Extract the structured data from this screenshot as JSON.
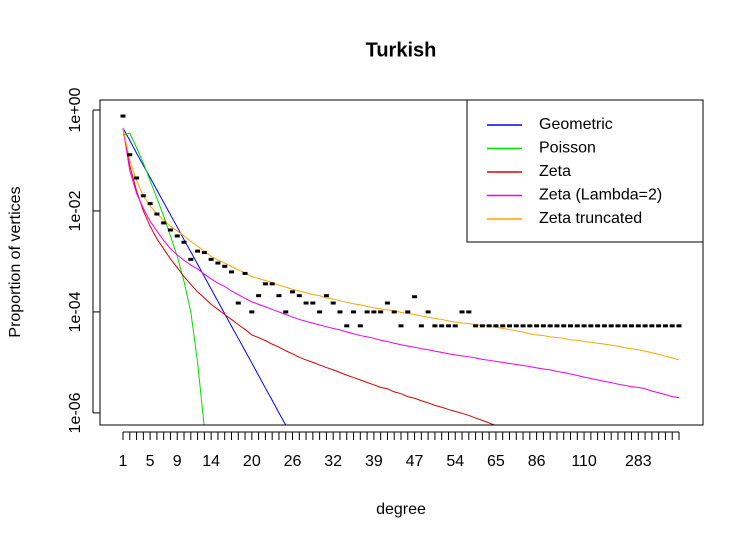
{
  "chart_data": {
    "type": "line",
    "title": "Turkish",
    "xlabel": "degree",
    "ylabel": "Proportion of vertices",
    "log_y": true,
    "ylim": [
      5.75e-07,
      1.58
    ],
    "yticks": [
      {
        "value": 1,
        "label": "1e+00"
      },
      {
        "value": 0.01,
        "label": "1e-02"
      },
      {
        "value": 0.0001,
        "label": "1e-04"
      },
      {
        "value": 1e-06,
        "label": "1e-06"
      }
    ],
    "legend": "topright",
    "categories": [
      "1",
      null,
      null,
      null,
      "5",
      null,
      null,
      null,
      "9",
      null,
      null,
      null,
      null,
      "14",
      null,
      null,
      null,
      null,
      null,
      "20",
      null,
      null,
      null,
      null,
      null,
      "26",
      null,
      null,
      null,
      null,
      null,
      "32",
      null,
      null,
      null,
      null,
      null,
      "39",
      null,
      null,
      null,
      null,
      null,
      "47",
      null,
      null,
      null,
      null,
      null,
      "54",
      null,
      null,
      null,
      null,
      null,
      "65",
      null,
      null,
      null,
      null,
      null,
      "86",
      null,
      null,
      null,
      null,
      null,
      null,
      "110",
      null,
      null,
      null,
      null,
      null,
      null,
      null,
      "283",
      null,
      null,
      null,
      null,
      null,
      null
    ],
    "color": "#000000",
    "values": [
      0.76,
      0.13,
      0.045,
      0.02,
      0.014,
      0.0087,
      0.0058,
      0.0042,
      0.0032,
      0.0024,
      0.0011,
      0.0016,
      0.0015,
      0.0011,
      0.00093,
      0.0008,
      0.00062,
      0.00015,
      0.00058,
      0.0001,
      0.00021,
      0.00036,
      0.00036,
      0.00021,
      0.0001,
      0.00025,
      0.00021,
      0.00015,
      0.00015,
      0.0001,
      0.00021,
      0.00015,
      0.0001,
      5.3e-05,
      0.0001,
      5.3e-05,
      0.0001,
      0.0001,
      0.0001,
      0.00015,
      0.0001,
      5.3e-05,
      0.0001,
      0.0002,
      5.3e-05,
      0.0001,
      5.3e-05,
      5.3e-05,
      5.3e-05,
      5.3e-05,
      0.0001,
      0.0001,
      5.3e-05,
      5.3e-05,
      5.3e-05,
      5.3e-05,
      5.3e-05,
      5.3e-05,
      5.3e-05,
      5.3e-05,
      5.3e-05,
      5.3e-05,
      5.3e-05,
      5.3e-05,
      5.3e-05,
      5.3e-05,
      5.3e-05,
      5.3e-05,
      5.3e-05,
      5.3e-05,
      5.3e-05,
      5.3e-05,
      5.3e-05,
      5.3e-05,
      5.3e-05,
      5.3e-05,
      5.3e-05,
      5.3e-05,
      5.3e-05,
      5.3e-05,
      5.3e-05,
      5.3e-05,
      5.3e-05
    ],
    "series": [
      {
        "name": "Geometric",
        "color": "#0000ff",
        "values": [
          0.44,
          0.25,
          0.14,
          0.08,
          0.046,
          0.026,
          0.0148,
          0.0084,
          0.0048,
          0.0027,
          0.00155,
          0.00088,
          0.0005,
          0.000285,
          0.000162,
          9.2e-05,
          5.2e-05,
          3e-05,
          1.7e-05,
          9.7e-06,
          5.5e-06,
          3.1e-06,
          1.78e-06,
          1e-06,
          5.75e-07,
          3.3e-07,
          null,
          null,
          null,
          null,
          null,
          null,
          null,
          null,
          null,
          null,
          null,
          null,
          null,
          null,
          null,
          null,
          null,
          null,
          null,
          null,
          null,
          null,
          null,
          null,
          null,
          null,
          null,
          null,
          null,
          null,
          null,
          null,
          null,
          null,
          null,
          null,
          null,
          null,
          null,
          null,
          null,
          null,
          null,
          null,
          null,
          null,
          null,
          null,
          null,
          null,
          null,
          null,
          null,
          null,
          null,
          null,
          null
        ]
      },
      {
        "name": "Poisson",
        "color": "#00dd00",
        "values": [
          0.32,
          0.35,
          0.18,
          0.089,
          0.04,
          0.0178,
          0.0079,
          0.0032,
          0.00126,
          0.0004,
          0.0001,
          1e-05,
          5e-07,
          null,
          null,
          null,
          null,
          null,
          null,
          null,
          null,
          null,
          null,
          null,
          null,
          null,
          null,
          null,
          null,
          null,
          null,
          null,
          null,
          null,
          null,
          null,
          null,
          null,
          null,
          null,
          null,
          null,
          null,
          null,
          null,
          null,
          null,
          null,
          null,
          null,
          null,
          null,
          null,
          null,
          null,
          null,
          null,
          null,
          null,
          null,
          null,
          null,
          null,
          null,
          null,
          null,
          null,
          null,
          null,
          null,
          null,
          null,
          null,
          null,
          null,
          null,
          null,
          null,
          null,
          null,
          null,
          null,
          null
        ]
      },
      {
        "name": "Zeta",
        "color": "#dd0000",
        "values": [
          0.44,
          0.079,
          0.025,
          0.01,
          0.005,
          0.0028,
          0.00178,
          0.00112,
          0.00076,
          0.0005,
          0.00035,
          0.00025,
          0.00019,
          0.000141,
          0.000112,
          8.9e-05,
          7.1e-05,
          5.6e-05,
          4.5e-05,
          3.5e-05,
          3.1e-05,
          2.7e-05,
          2.3e-05,
          2e-05,
          1.7e-05,
          1.48e-05,
          1.26e-05,
          1.12e-05,
          1e-05,
          8.9e-06,
          7.9e-06,
          7.1e-06,
          6.3e-06,
          5.6e-06,
          5e-06,
          4.5e-06,
          4e-06,
          3.6e-06,
          3.2e-06,
          3e-06,
          2.6e-06,
          2.4e-06,
          2.1e-06,
          1.95e-06,
          1.74e-06,
          1.58e-06,
          1.41e-06,
          1.29e-06,
          1.17e-06,
          1.07e-06,
          9.8e-07,
          8.9e-07,
          7.9e-07,
          7.1e-07,
          6.3e-07,
          5.6e-07,
          null,
          null,
          null,
          null,
          null,
          null,
          null,
          null,
          null,
          null,
          null,
          null,
          null,
          null,
          null,
          null,
          null,
          null,
          null,
          null,
          null,
          null,
          null,
          null,
          null,
          null,
          null
        ]
      },
      {
        "name": "Zeta (Lambda=2)",
        "color": "#ee00ee",
        "values": [
          0.44,
          0.063,
          0.0224,
          0.0112,
          0.0063,
          0.004,
          0.0026,
          0.00178,
          0.00135,
          0.00105,
          0.00085,
          0.00071,
          0.00056,
          0.00045,
          0.00037,
          0.00032,
          0.00026,
          0.00022,
          0.000186,
          0.000158,
          0.000141,
          0.000126,
          0.000112,
          0.0001,
          8.9e-05,
          7.9e-05,
          7.1e-05,
          6.5e-05,
          6e-05,
          5.5e-05,
          5.1e-05,
          4.7e-05,
          4.4e-05,
          4e-05,
          3.7e-05,
          3.4e-05,
          3.2e-05,
          3e-05,
          2.75e-05,
          2.6e-05,
          2.4e-05,
          2.24e-05,
          2.1e-05,
          2e-05,
          1.86e-05,
          1.78e-05,
          1.66e-05,
          1.58e-05,
          1.48e-05,
          1.41e-05,
          1.35e-05,
          1.29e-05,
          1.23e-05,
          1.15e-05,
          1.1e-05,
          1.05e-05,
          1e-05,
          9.5e-06,
          9.1e-06,
          8.7e-06,
          8.3e-06,
          7.8e-06,
          7.4e-06,
          7.1e-06,
          6.6e-06,
          6.3e-06,
          5.9e-06,
          5.5e-06,
          5.1e-06,
          4.8e-06,
          4.5e-06,
          4.2e-06,
          4e-06,
          3.7e-06,
          3.5e-06,
          3.3e-06,
          3.2e-06,
          3e-06,
          2.7e-06,
          2.5e-06,
          2.3e-06,
          2.1e-06,
          2e-06
        ]
      },
      {
        "name": "Zeta truncated",
        "color": "#ffa500",
        "values": [
          0.44,
          0.1,
          0.0398,
          0.02,
          0.0126,
          0.0089,
          0.0066,
          0.005,
          0.004,
          0.0032,
          0.0025,
          0.002,
          0.0016,
          0.00126,
          0.00107,
          0.00093,
          0.00079,
          0.00068,
          0.00059,
          0.0005,
          0.00046,
          0.00042,
          0.00038,
          0.00034,
          0.00031,
          0.00028,
          0.00026,
          0.00024,
          0.00022,
          0.00021,
          0.00019,
          0.00018,
          0.000166,
          0.000155,
          0.000145,
          0.000138,
          0.000129,
          0.00012,
          0.000115,
          0.00011,
          0.000105,
          9.8e-05,
          9.3e-05,
          8.9e-05,
          8.3e-05,
          7.9e-05,
          7.4e-05,
          7.1e-05,
          6.6e-05,
          6.3e-05,
          6e-05,
          5.9e-05,
          5.6e-05,
          5.4e-05,
          5.2e-05,
          5e-05,
          4.7e-05,
          4.5e-05,
          4.2e-05,
          4e-05,
          3.7e-05,
          3.5e-05,
          3.4e-05,
          3.2e-05,
          3.1e-05,
          3e-05,
          2.8e-05,
          2.75e-05,
          2.6e-05,
          2.5e-05,
          2.4e-05,
          2.3e-05,
          2.2e-05,
          2.1e-05,
          1.95e-05,
          1.86e-05,
          1.78e-05,
          1.66e-05,
          1.55e-05,
          1.45e-05,
          1.32e-05,
          1.23e-05,
          1.12e-05
        ]
      }
    ]
  }
}
